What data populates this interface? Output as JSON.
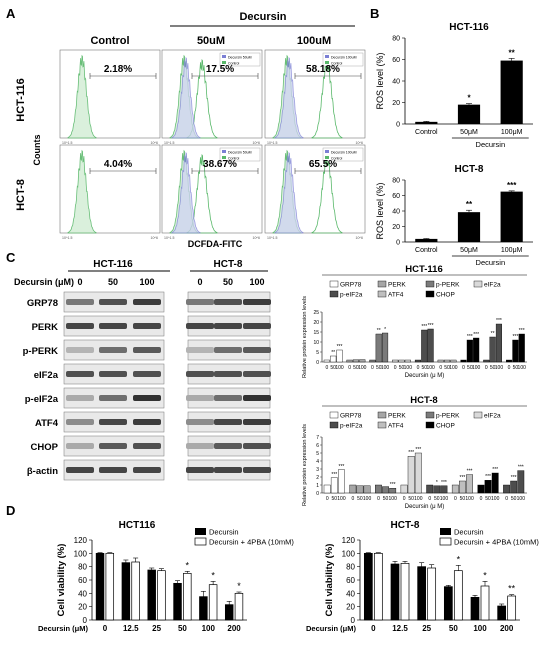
{
  "panels": {
    "A": {
      "letter": "A",
      "col_headers": [
        "Control",
        "50uM",
        "100uM"
      ],
      "treatment_label": "Decursin",
      "row_labels": [
        "HCT-116",
        "HCT-8"
      ],
      "y_axis_label": "Counts",
      "x_axis_label": "DCFDA-FITC",
      "tick_text": [
        "10^1.5",
        "10^6"
      ],
      "legend_labels": [
        [
          "Decursin 50uM",
          "Control"
        ],
        [
          "Decursin 100uM",
          "Control"
        ]
      ],
      "percentages": [
        [
          "2.18%",
          "17.5%",
          "58.18%"
        ],
        [
          "4.04%",
          "38.67%",
          "65.5%"
        ]
      ],
      "colors": {
        "control": "#59b86a",
        "treated": "#7b7fd4",
        "treated_fill": "#cfd3f2",
        "control_fill": "#d6efd9"
      }
    },
    "B": {
      "letter": "B"
    },
    "C": {
      "letter": "C",
      "cell_lines": [
        "HCT-116",
        "HCT-8"
      ],
      "dose_label": "Decursin (μM)",
      "doses": [
        "0",
        "50",
        "100"
      ],
      "proteins": [
        "GRP78",
        "PERK",
        "p-PERK",
        "eIF2a",
        "p-eIF2a",
        "ATF4",
        "CHOP",
        "β-actin"
      ]
    },
    "D": {
      "letter": "D"
    }
  },
  "chart_data": [
    {
      "type": "bar",
      "title": "HCT-116",
      "categories": [
        "Control",
        "50μM",
        "100μM"
      ],
      "group_label": "Decursin",
      "values": [
        2,
        18,
        59
      ],
      "errors": [
        0.5,
        1,
        2
      ],
      "significance": [
        "",
        "*",
        "**"
      ],
      "ylabel": "ROS level (%)",
      "ylim": [
        0,
        80
      ],
      "yticks": [
        0,
        20,
        40,
        60,
        80
      ]
    },
    {
      "type": "bar",
      "title": "HCT-8",
      "categories": [
        "Control",
        "50μM",
        "100μM"
      ],
      "group_label": "Decursin",
      "values": [
        4,
        38.5,
        65
      ],
      "errors": [
        0.5,
        2.5,
        1
      ],
      "significance": [
        "",
        "**",
        "***"
      ],
      "ylabel": "ROS level (%)",
      "ylim": [
        0,
        80
      ],
      "yticks": [
        0,
        20,
        40,
        60,
        80
      ]
    },
    {
      "type": "bar",
      "title": "HCT-116",
      "ylabel": "Relative protein expression levels",
      "xlabel": "Decursin (μ M)",
      "ylim": [
        0,
        25
      ],
      "yticks": [
        0,
        5,
        10,
        15,
        20,
        25
      ],
      "doses": [
        "0",
        "50",
        "100"
      ],
      "series": [
        {
          "name": "GRP78",
          "values": [
            1,
            3,
            6
          ],
          "sig": [
            "",
            "**",
            "***"
          ]
        },
        {
          "name": "PERK",
          "values": [
            1,
            1.1,
            1.2
          ],
          "sig": [
            "",
            "",
            ""
          ]
        },
        {
          "name": "p-PERK",
          "values": [
            1,
            14,
            14.5
          ],
          "sig": [
            "",
            "**",
            "*"
          ]
        },
        {
          "name": "eIF2a",
          "values": [
            1,
            1,
            1
          ],
          "sig": [
            "",
            "",
            ""
          ]
        },
        {
          "name": "p-eIF2a",
          "values": [
            1,
            16,
            16.5
          ],
          "sig": [
            "",
            "***",
            "***"
          ]
        },
        {
          "name": "ATF4",
          "values": [
            1,
            1,
            1
          ],
          "sig": [
            "",
            "",
            ""
          ]
        },
        {
          "name": "CHOP",
          "values": [
            1,
            11,
            12
          ],
          "sig": [
            "",
            "***",
            "***"
          ]
        },
        {
          "name": "p-eIF2a",
          "values": [
            1,
            12.5,
            19
          ],
          "sig": [
            "",
            "**",
            "***"
          ]
        },
        {
          "name": "CHOP",
          "values": [
            1,
            11,
            14
          ],
          "sig": [
            "",
            "***",
            "***"
          ]
        }
      ],
      "legend": [
        "GRP78",
        "PERK",
        "p-PERK",
        "eIF2a",
        "p-eIF2a",
        "ATF4",
        "CHOP"
      ]
    },
    {
      "type": "bar",
      "title": "HCT-8",
      "ylabel": "Relative protein expression levels",
      "xlabel": "Decursin (μ M)",
      "ylim": [
        0,
        7
      ],
      "yticks": [
        0,
        1,
        2,
        3,
        4,
        5,
        6,
        7
      ],
      "doses": [
        "0",
        "50",
        "100"
      ],
      "series": [
        {
          "name": "GRP78",
          "values": [
            1,
            1.9,
            2.9
          ],
          "sig": [
            "",
            "***",
            "***"
          ]
        },
        {
          "name": "PERK",
          "values": [
            1,
            0.9,
            0.9
          ],
          "sig": [
            "",
            "",
            ""
          ]
        },
        {
          "name": "p-PERK",
          "values": [
            1,
            0.8,
            0.6
          ],
          "sig": [
            "",
            "",
            "***"
          ]
        },
        {
          "name": "eIF2a",
          "values": [
            1,
            4.6,
            5.0
          ],
          "sig": [
            "",
            "***",
            "***"
          ]
        },
        {
          "name": "p-eIF2a",
          "values": [
            1,
            0.9,
            0.9
          ],
          "sig": [
            "",
            "*",
            "***"
          ]
        },
        {
          "name": "ATF4",
          "values": [
            1,
            1.5,
            2.3
          ],
          "sig": [
            "",
            "***",
            "***"
          ]
        },
        {
          "name": "CHOP",
          "values": [
            1,
            1.6,
            2.5
          ],
          "sig": [
            "",
            "***",
            "***"
          ]
        },
        {
          "name": "CHOP",
          "values": [
            1,
            1.5,
            2.8
          ],
          "sig": [
            "",
            "***",
            "***"
          ]
        }
      ],
      "legend": [
        "GRP78",
        "PERK",
        "p-PERK",
        "eIF2a",
        "p-eIF2a",
        "ATF4",
        "CHOP"
      ]
    },
    {
      "type": "bar",
      "title": "HCT116",
      "xlabel": "Decursin (μM)",
      "ylabel": "Cell viability (%)",
      "ylim": [
        0,
        120
      ],
      "yticks": [
        0,
        20,
        40,
        60,
        80,
        100,
        120
      ],
      "categories": [
        "0",
        "12.5",
        "25",
        "50",
        "100",
        "200"
      ],
      "series": [
        {
          "name": "Decursin",
          "values": [
            100,
            86,
            75,
            55,
            35,
            23
          ],
          "errors": [
            1,
            4,
            3,
            4,
            8,
            5
          ]
        },
        {
          "name": "Decursin + 4PBA (10mM)",
          "values": [
            100,
            87,
            74,
            70,
            53,
            40
          ],
          "errors": [
            1,
            6,
            3,
            3,
            5,
            2
          ]
        }
      ],
      "significance": [
        "",
        "",
        "",
        "*",
        "*",
        "*"
      ]
    },
    {
      "type": "bar",
      "title": "HCT-8",
      "xlabel": "Decursin (μM)",
      "ylabel": "Cell viability (%)",
      "ylim": [
        0,
        120
      ],
      "yticks": [
        0,
        20,
        40,
        60,
        80,
        100,
        120
      ],
      "categories": [
        "0",
        "12.5",
        "25",
        "50",
        "100",
        "200"
      ],
      "series": [
        {
          "name": "Decursin",
          "values": [
            100,
            84,
            80,
            50,
            34,
            21
          ],
          "errors": [
            1,
            4,
            6,
            2,
            3,
            3
          ]
        },
        {
          "name": "Decursin + 4PBA (10mM)",
          "values": [
            100,
            85,
            78,
            74,
            51,
            36
          ],
          "errors": [
            1,
            3,
            5,
            8,
            7,
            2
          ]
        }
      ],
      "significance": [
        "",
        "",
        "",
        "*",
        "*",
        "**"
      ]
    }
  ]
}
